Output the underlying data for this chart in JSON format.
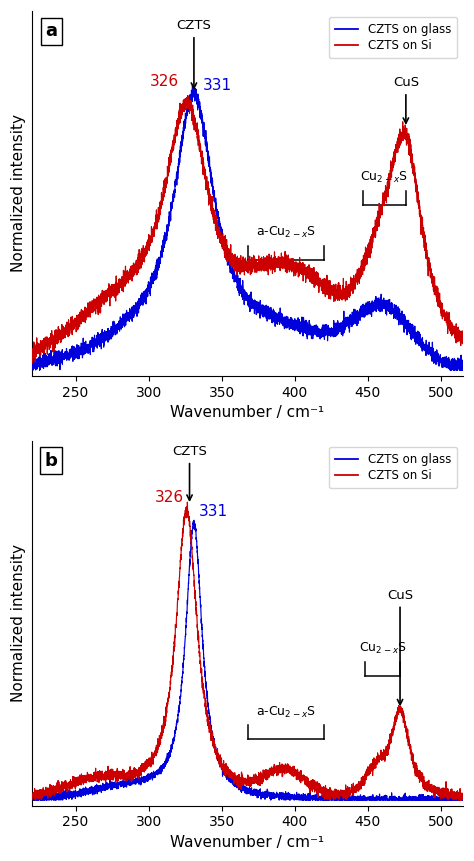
{
  "xlim": [
    220,
    515
  ],
  "xlabel": "Wavenumber / cm⁻¹",
  "ylabel": "Normalized intensity",
  "blue_color": "#0000dd",
  "red_color": "#cc0000",
  "panel_a_label": "a",
  "panel_b_label": "b",
  "legend_blue": "CZTS on glass",
  "legend_red": "CZTS on Si",
  "noise_seed": 42
}
